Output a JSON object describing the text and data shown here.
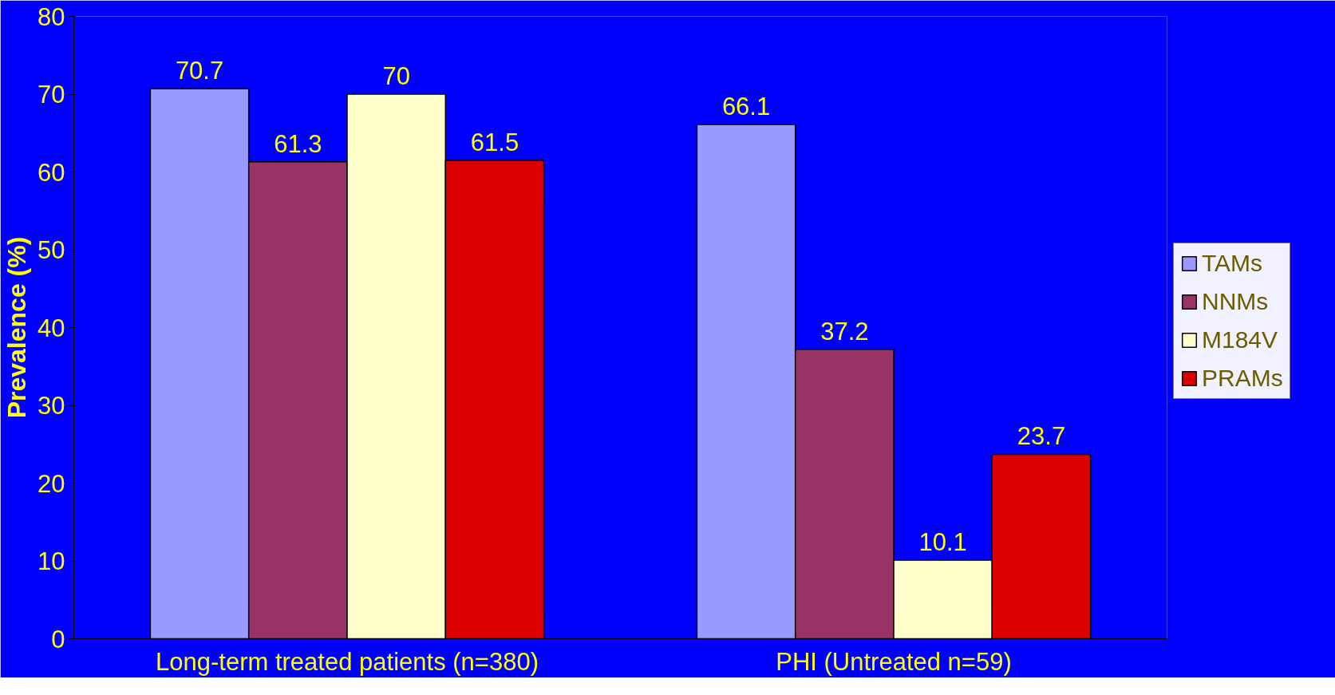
{
  "chart_data": {
    "type": "bar",
    "ylabel": "Prevalence (%)",
    "categories": [
      "Long-term treated patients (n=380)",
      "PHI (Untreated n=59)"
    ],
    "series": [
      {
        "name": "TAMs",
        "color": "#9999ff",
        "values": [
          70.7,
          66.1
        ]
      },
      {
        "name": "NNMs",
        "color": "#993366",
        "values": [
          61.3,
          37.2
        ]
      },
      {
        "name": "M184V",
        "color": "#ffffcc",
        "values": [
          70,
          10.1
        ]
      },
      {
        "name": "PRAMs",
        "color": "#dd0000",
        "values": [
          61.5,
          23.7
        ]
      }
    ],
    "ylim": [
      0,
      80
    ],
    "yticks": [
      0,
      10,
      20,
      30,
      40,
      50,
      60,
      70,
      80
    ],
    "data_labels": true,
    "grid": false,
    "legend": "right"
  }
}
